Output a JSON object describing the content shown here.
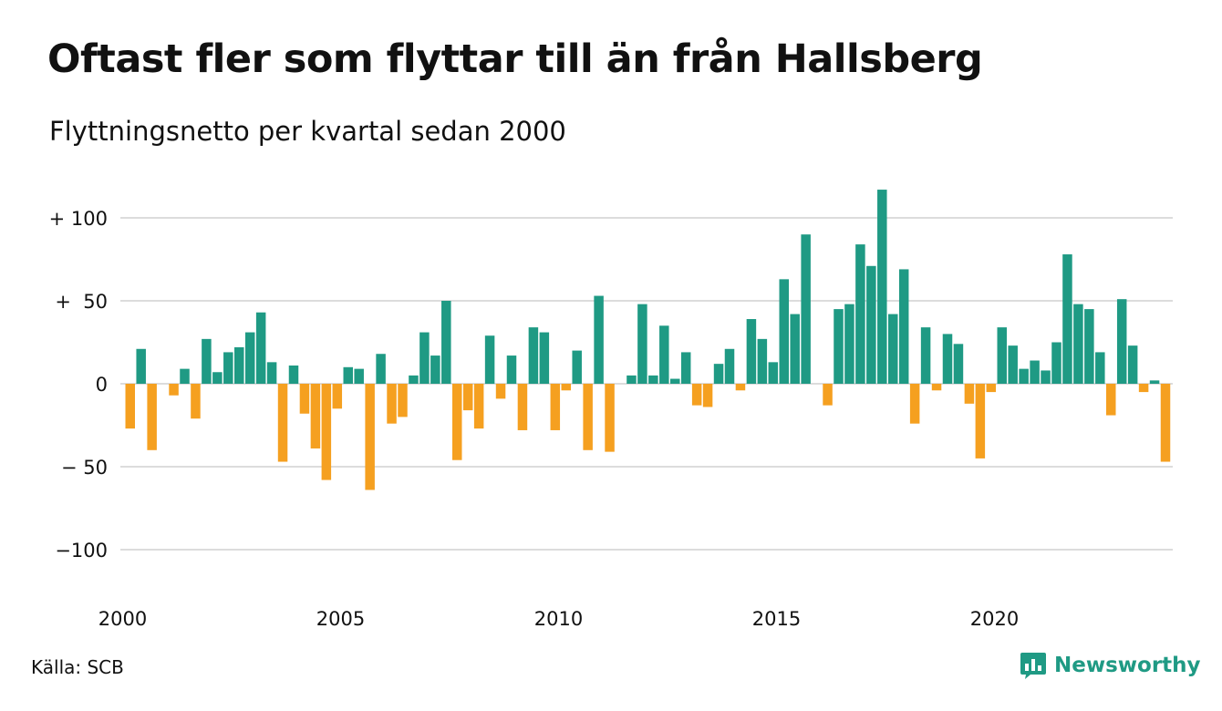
{
  "header": {
    "title": "Oftast fler som flyttar till än från Hallsberg",
    "subtitle": "Flyttningsnetto per kvartal sedan 2000"
  },
  "footer": {
    "source": "Källa: SCB",
    "brand": "Newsworthy",
    "brand_icon": "bar-chart-speech-bubble-icon"
  },
  "colors": {
    "positive": "#1f9a84",
    "negative": "#f5a020",
    "grid": "#dcdcdc",
    "brand": "#1f9a84"
  },
  "chart_data": {
    "type": "bar",
    "title": "Oftast fler som flyttar till än från Hallsberg",
    "subtitle": "Flyttningsnetto per kvartal sedan 2000",
    "xlabel": "",
    "ylabel": "",
    "ylim": [
      -120,
      120
    ],
    "y_ticks": [
      {
        "value": 100,
        "label": "+ 100"
      },
      {
        "value": 50,
        "label": "+  50"
      },
      {
        "value": 0,
        "label": "0"
      },
      {
        "value": -50,
        "label": "− 50"
      },
      {
        "value": -100,
        "label": "−100"
      }
    ],
    "x_ticks": [
      {
        "index": 0,
        "label": "2000"
      },
      {
        "index": 20,
        "label": "2005"
      },
      {
        "index": 40,
        "label": "2010"
      },
      {
        "index": 60,
        "label": "2015"
      },
      {
        "index": 80,
        "label": "2020"
      }
    ],
    "grid": true,
    "legend": "none",
    "first_quarter": "2000 Q1",
    "values": [
      -27,
      21,
      -40,
      0,
      -7,
      9,
      -21,
      27,
      7,
      19,
      22,
      31,
      43,
      13,
      -47,
      11,
      -18,
      -39,
      -58,
      -15,
      10,
      9,
      -64,
      18,
      -24,
      -20,
      5,
      31,
      17,
      50,
      -46,
      -16,
      -27,
      29,
      -9,
      17,
      -28,
      34,
      31,
      -28,
      -4,
      20,
      -40,
      53,
      -41,
      0,
      5,
      48,
      5,
      35,
      3,
      19,
      -13,
      -14,
      12,
      21,
      -4,
      39,
      27,
      13,
      63,
      42,
      90,
      0,
      -13,
      45,
      48,
      84,
      71,
      117,
      42,
      69,
      -24,
      34,
      -4,
      30,
      24,
      -12,
      -45,
      -5,
      34,
      23,
      9,
      14,
      8,
      25,
      78,
      48,
      45,
      19,
      -19,
      51,
      23,
      -5,
      2,
      -47
    ]
  }
}
